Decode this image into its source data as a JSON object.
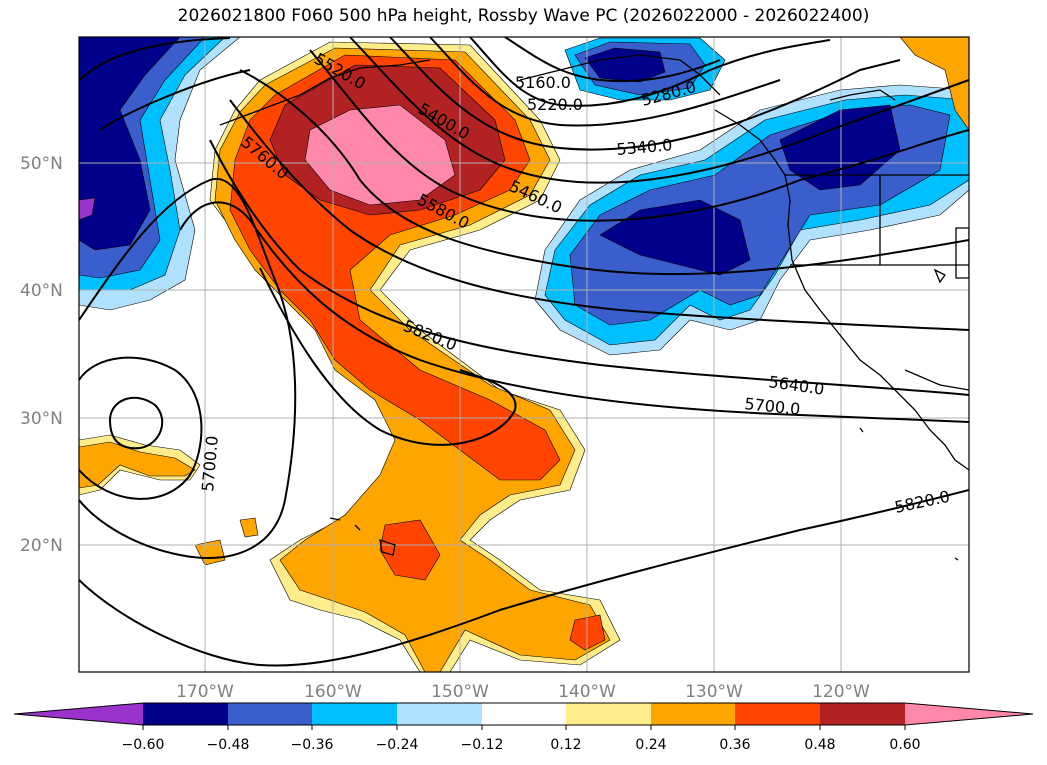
{
  "title": "2026021800 F060 500 hPa height, Rossby Wave PC (2026022000 - 2026022400)",
  "lat_labels": [
    "50°N",
    "40°N",
    "30°N",
    "20°N"
  ],
  "lon_labels": [
    "170°W",
    "160°W",
    "150°W",
    "140°W",
    "130°W",
    "120°W"
  ],
  "colorbar": {
    "ticks": [
      "−0.60",
      "−0.48",
      "−0.36",
      "−0.24",
      "−0.12",
      "0.12",
      "0.24",
      "0.36",
      "0.48",
      "0.60"
    ],
    "colors": [
      "#9933cc",
      "#00008b",
      "#3a5fcd",
      "#00bfff",
      "#b0e2ff",
      "#ffffff",
      "#ffec8b",
      "#ffa500",
      "#ff4500",
      "#b22222",
      "#ff88aa"
    ]
  },
  "contour_labels": {
    "c5160": "5160.0",
    "c5220": "5220.0",
    "c5280": "5280.0",
    "c5340": "5340.0",
    "c5400": "5400.0",
    "c5460": "5460.0",
    "c5520": "5520.0",
    "c5580": "5580.0",
    "c5640": "5640.0",
    "c5700a": "5700.0",
    "c5700b": "5700.0",
    "c5760": "5760.0",
    "c5820a": "5820.0",
    "c5820b": "5820.0"
  }
}
